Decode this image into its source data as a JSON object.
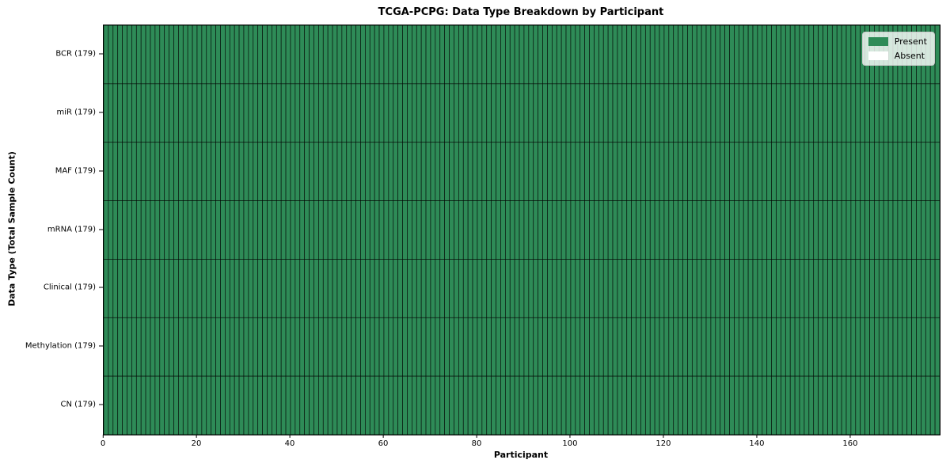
{
  "figure": {
    "title": "TCGA-PCPG: Data Type Breakdown by Participant",
    "xlabel": "Participant",
    "ylabel": "Data Type (Total Sample Count)"
  },
  "legend": {
    "items": [
      {
        "label": "Present",
        "color": "#2e8b57"
      },
      {
        "label": "Absent",
        "color": "#ffffff"
      }
    ]
  },
  "chart_data": {
    "type": "heatmap",
    "title": "TCGA-PCPG: Data Type Breakdown by Participant",
    "xlabel": "Participant",
    "ylabel": "Data Type (Total Sample Count)",
    "legend_position": "upper right",
    "n_participants": 179,
    "xlim": [
      0,
      179
    ],
    "x_ticks": [
      0,
      20,
      40,
      60,
      80,
      100,
      120,
      140,
      160
    ],
    "rows": [
      {
        "label": "BCR (179)",
        "data_type": "BCR",
        "total_samples": 179,
        "present_count": 179,
        "absent_count": 0
      },
      {
        "label": "miR (179)",
        "data_type": "miR",
        "total_samples": 179,
        "present_count": 179,
        "absent_count": 0
      },
      {
        "label": "MAF (179)",
        "data_type": "MAF",
        "total_samples": 179,
        "present_count": 179,
        "absent_count": 0
      },
      {
        "label": "mRNA (179)",
        "data_type": "mRNA",
        "total_samples": 179,
        "present_count": 179,
        "absent_count": 0
      },
      {
        "label": "Clinical (179)",
        "data_type": "Clinical",
        "total_samples": 179,
        "present_count": 179,
        "absent_count": 0
      },
      {
        "label": "Methylation (179)",
        "data_type": "Methylation",
        "total_samples": 179,
        "present_count": 179,
        "absent_count": 0
      },
      {
        "label": "CN (179)",
        "data_type": "CN",
        "total_samples": 179,
        "present_count": 179,
        "absent_count": 0
      }
    ],
    "colors": {
      "present": "#2e8b57",
      "absent": "#ffffff",
      "cell_edge": "#000000",
      "plot_border": "#000000"
    },
    "grid": false
  }
}
